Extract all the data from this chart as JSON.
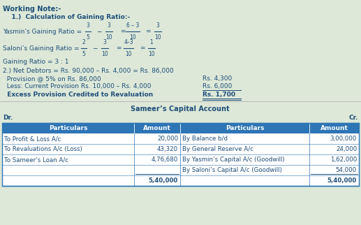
{
  "bg_color": "#dde8d8",
  "header_bg": "#2e75b6",
  "header_fg": "#ffffff",
  "text_color": "#1f4e79",
  "working_note_title": "Working Note:-",
  "section1_title": "    1.)  Calculation of Gaining Ratio:-",
  "gaining_ratio": "Gaining Ratio = 3 : 1",
  "section2_line1": "2.) Net Debtors = Rs. 90,000 – Rs. 4,000 = Rs. 86,000",
  "provision_label": "  Provision @ 5% on Rs. 86,000",
  "provision_value": "Rs. 4,300",
  "less_label": "  Less: Current Provision Rs. 10,000 – Rs. 4,000",
  "less_value": "Rs. 6,000",
  "excess_label": "  Excess Provision Credited to Revaluation",
  "excess_value": "Rs. 1,700",
  "table_title": "Sameer’s Capital Account",
  "dr_label": "Dr.",
  "cr_label": "Cr.",
  "col_headers": [
    "Particulars",
    "Amount",
    "Particulars",
    "Amount"
  ],
  "rows": [
    [
      "To Profit & Loss A/c",
      "20,000",
      "By Balance b/d",
      "3,00,000"
    ],
    [
      "To Revaluations A/c (Loss)",
      "43,320",
      "By General Reserve A/c",
      "24,000"
    ],
    [
      "To Sameer’s Loan A/c",
      "4,76,680",
      "By Yasmin’s Capital A/c (Goodwill)",
      "1,62,000"
    ],
    [
      "",
      "",
      "By Saloni’s Capital A/c (Goodwill)",
      "54,000"
    ],
    [
      "",
      "5,40,000",
      "",
      "5,40,000"
    ]
  ]
}
